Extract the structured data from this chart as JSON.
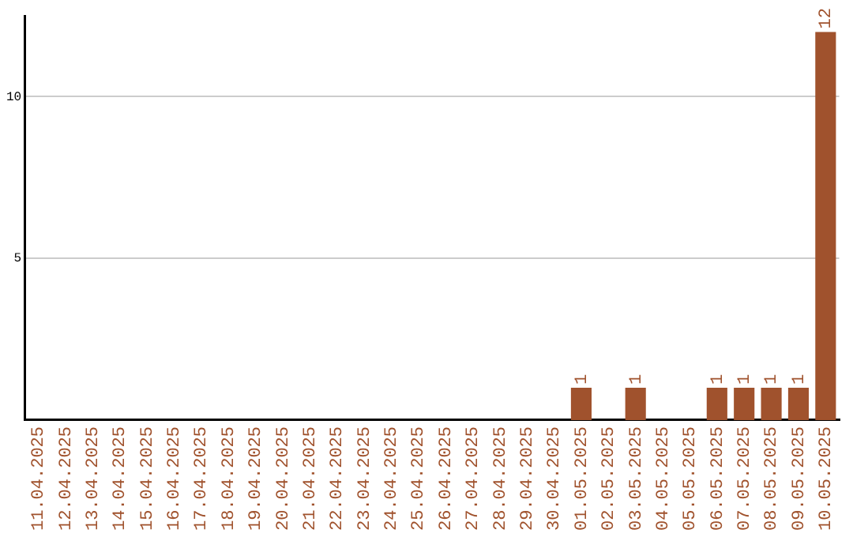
{
  "chart_data": {
    "type": "bar",
    "categories": [
      "11.04.2025",
      "12.04.2025",
      "13.04.2025",
      "14.04.2025",
      "15.04.2025",
      "16.04.2025",
      "17.04.2025",
      "18.04.2025",
      "19.04.2025",
      "20.04.2025",
      "21.04.2025",
      "22.04.2025",
      "23.04.2025",
      "24.04.2025",
      "25.04.2025",
      "26.04.2025",
      "27.04.2025",
      "28.04.2025",
      "29.04.2025",
      "30.04.2025",
      "01.05.2025",
      "02.05.2025",
      "03.05.2025",
      "04.05.2025",
      "05.05.2025",
      "06.05.2025",
      "07.05.2025",
      "08.05.2025",
      "09.05.2025",
      "10.05.2025"
    ],
    "values": [
      0,
      0,
      0,
      0,
      0,
      0,
      0,
      0,
      0,
      0,
      0,
      0,
      0,
      0,
      0,
      0,
      0,
      0,
      0,
      0,
      1,
      0,
      1,
      0,
      0,
      1,
      1,
      1,
      1,
      12
    ],
    "value_labels": [
      null,
      null,
      null,
      null,
      null,
      null,
      null,
      null,
      null,
      null,
      null,
      null,
      null,
      null,
      null,
      null,
      null,
      null,
      null,
      null,
      "1",
      null,
      "1",
      null,
      null,
      "1",
      "1",
      "1",
      "1",
      "12"
    ],
    "color": "#a0522d",
    "ylim": [
      0,
      12.5
    ],
    "yticks": [
      5,
      10
    ],
    "grid": "y"
  }
}
